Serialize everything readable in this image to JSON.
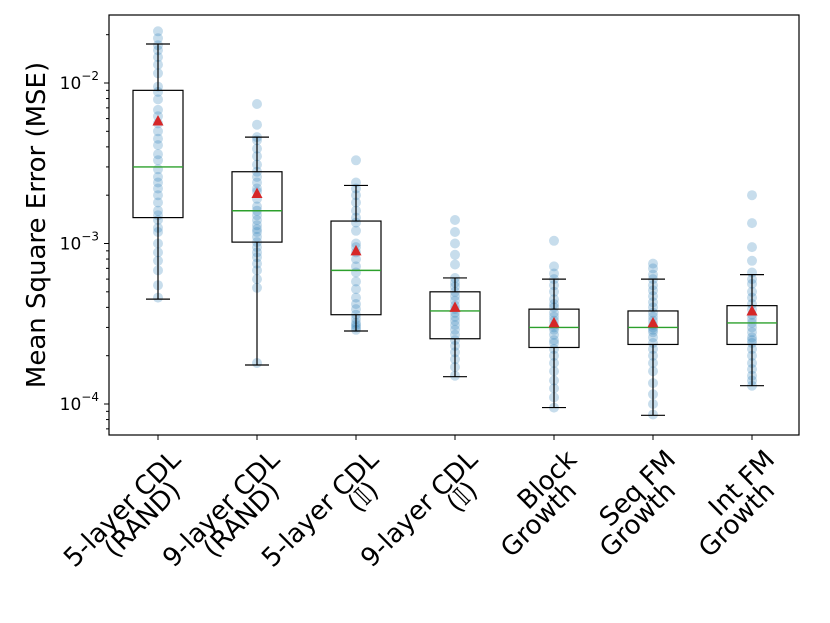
{
  "chart_data": {
    "type": "box",
    "title": "",
    "xlabel": "",
    "ylabel": "Mean Square Error (MSE)",
    "yscale": "log",
    "ylim": [
      6.5e-05,
      0.028
    ],
    "ytick_labels": [
      {
        "base": "10",
        "exp": "−4",
        "value": 0.0001
      },
      {
        "base": "10",
        "exp": "−3",
        "value": 0.001
      },
      {
        "base": "10",
        "exp": "−2",
        "value": 0.01
      }
    ],
    "categories": [
      {
        "line1": "5-layer CDL",
        "line2": "(RAND)"
      },
      {
        "line1": "9-layer CDL",
        "line2": "(RAND)"
      },
      {
        "line1": "5-layer CDL",
        "line2": "(𝕀)"
      },
      {
        "line1": "9-layer CDL",
        "line2": "(𝕀)"
      },
      {
        "line1": "Block",
        "line2": "Growth"
      },
      {
        "line1": "Seq FM",
        "line2": "Growth"
      },
      {
        "line1": "Int FM",
        "line2": "Growth"
      }
    ],
    "boxes": [
      {
        "whisker_low": 0.00045,
        "q1": 0.00145,
        "median": 0.003,
        "q3": 0.009,
        "whisker_high": 0.0175,
        "mean": 0.0058
      },
      {
        "whisker_low": 0.000175,
        "q1": 0.00102,
        "median": 0.0016,
        "q3": 0.0028,
        "whisker_high": 0.0046,
        "mean": 0.00205
      },
      {
        "whisker_low": 0.000285,
        "q1": 0.00036,
        "median": 0.00068,
        "q3": 0.00138,
        "whisker_high": 0.0023,
        "mean": 0.0009
      },
      {
        "whisker_low": 0.000148,
        "q1": 0.000255,
        "median": 0.00038,
        "q3": 0.0005,
        "whisker_high": 0.00061,
        "mean": 0.0004
      },
      {
        "whisker_low": 9.5e-05,
        "q1": 0.000225,
        "median": 0.0003,
        "q3": 0.00039,
        "whisker_high": 0.0006,
        "mean": 0.00032
      },
      {
        "whisker_low": 8.5e-05,
        "q1": 0.000235,
        "median": 0.0003,
        "q3": 0.00038,
        "whisker_high": 0.0006,
        "mean": 0.00032
      },
      {
        "whisker_low": 0.00013,
        "q1": 0.000235,
        "median": 0.00032,
        "q3": 0.00041,
        "whisker_high": 0.00064,
        "mean": 0.00038
      }
    ],
    "points": [
      [
        0.021,
        0.019,
        0.0172,
        0.016,
        0.0145,
        0.013,
        0.0115,
        0.0095,
        0.0088,
        0.0079,
        0.0068,
        0.0062,
        0.0056,
        0.005,
        0.0045,
        0.0041,
        0.0036,
        0.0033,
        0.0029,
        0.0026,
        0.0024,
        0.0022,
        0.002,
        0.0018,
        0.0016,
        0.0015,
        0.0014,
        0.00125,
        0.00118,
        0.001,
        0.00088,
        0.00078,
        0.00068,
        0.00055,
        0.00046
      ],
      [
        0.0074,
        0.0055,
        0.0046,
        0.0044,
        0.0039,
        0.0035,
        0.0031,
        0.0028,
        0.0026,
        0.0024,
        0.0022,
        0.0021,
        0.0019,
        0.0017,
        0.0016,
        0.0015,
        0.0014,
        0.0013,
        0.00123,
        0.00118,
        0.0011,
        0.00102,
        0.00095,
        0.00088,
        0.00082,
        0.00075,
        0.00068,
        0.0006,
        0.00053,
        0.00018
      ],
      [
        0.0033,
        0.0024,
        0.0022,
        0.002,
        0.0018,
        0.0016,
        0.00145,
        0.00135,
        0.0012,
        0.001,
        0.00095,
        0.00088,
        0.0008,
        0.00072,
        0.00066,
        0.00058,
        0.00052,
        0.00046,
        0.00042,
        0.00039,
        0.00036,
        0.00034,
        0.00032,
        0.00031,
        0.0003,
        0.00029
      ],
      [
        0.0014,
        0.00118,
        0.001,
        0.00085,
        0.00074,
        0.00061,
        0.00057,
        0.00054,
        0.0005,
        0.00047,
        0.00044,
        0.00041,
        0.00039,
        0.00037,
        0.00035,
        0.00033,
        0.00031,
        0.00029,
        0.00027,
        0.00025,
        0.00023,
        0.00021,
        0.00019,
        0.00017,
        0.00015
      ],
      [
        0.00104,
        0.00072,
        0.00065,
        0.0006,
        0.00055,
        0.0005,
        0.00045,
        0.00042,
        0.0004,
        0.00037,
        0.00035,
        0.00033,
        0.00031,
        0.0003,
        0.00029,
        0.00027,
        0.00025,
        0.00024,
        0.00022,
        0.0002,
        0.00018,
        0.00016,
        0.00014,
        0.000125,
        0.00011,
        9.5e-05
      ],
      [
        0.00075,
        0.0007,
        0.00064,
        0.0006,
        0.00055,
        0.00051,
        0.00047,
        0.00043,
        0.0004,
        0.00037,
        0.00035,
        0.00033,
        0.00031,
        0.0003,
        0.00029,
        0.00028,
        0.00026,
        0.00024,
        0.00022,
        0.0002,
        0.00018,
        0.00016,
        0.000135,
        0.000115,
        0.0001,
        8.6e-05
      ],
      [
        0.002,
        0.00134,
        0.00095,
        0.00078,
        0.00066,
        0.0006,
        0.00056,
        0.0005,
        0.00046,
        0.00042,
        0.00039,
        0.00036,
        0.00034,
        0.00032,
        0.0003,
        0.00028,
        0.00026,
        0.00025,
        0.00024,
        0.00022,
        0.0002,
        0.00018,
        0.000165,
        0.00015,
        0.00014,
        0.00013
      ]
    ],
    "colors": {
      "box": "#000000",
      "median": "#2ca02c",
      "mean": "#d62728",
      "points": "#1f77b4"
    },
    "grid": false,
    "legend": "none"
  }
}
